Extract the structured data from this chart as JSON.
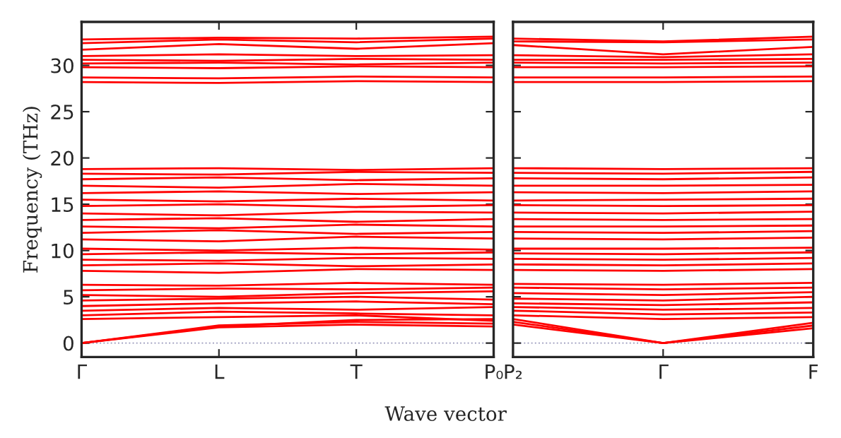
{
  "chart_data": [
    {
      "type": "line",
      "ylabel": "Frequency (THz)",
      "xlabel": "Wave vector",
      "categories": [
        "Γ",
        "L",
        "T",
        "P₀"
      ],
      "ylim": [
        -1.5,
        34.7
      ],
      "yticks": [
        0,
        5,
        10,
        15,
        20,
        25,
        30
      ],
      "line_style": "solid",
      "ref_lines": [
        {
          "axis": "y",
          "value": 0,
          "color": "#9999bb",
          "line_style": "dotted"
        }
      ],
      "series": [
        {
          "color": "#ff0000",
          "values": [
            0,
            1.7,
            2.0,
            1.8
          ]
        },
        {
          "color": "#ff0000",
          "values": [
            0,
            1.9,
            2.3,
            2.1
          ]
        },
        {
          "color": "#ff0000",
          "values": [
            0,
            1.8,
            2.5,
            2.6
          ]
        },
        {
          "color": "#ff0000",
          "values": [
            2.6,
            2.8,
            3.0,
            2.4
          ]
        },
        {
          "color": "#ff0000",
          "values": [
            3.0,
            3.4,
            3.2,
            3.0
          ]
        },
        {
          "color": "#ff0000",
          "values": [
            3.5,
            3.8,
            3.6,
            3.9
          ]
        },
        {
          "color": "#ff0000",
          "values": [
            4.0,
            4.3,
            4.5,
            4.2
          ]
        },
        {
          "color": "#ff0000",
          "values": [
            4.6,
            4.8,
            5.0,
            4.7
          ]
        },
        {
          "color": "#ff0000",
          "values": [
            5.2,
            5.0,
            5.4,
            5.6
          ]
        },
        {
          "color": "#ff0000",
          "values": [
            5.7,
            5.9,
            5.8,
            6.0
          ]
        },
        {
          "color": "#ff0000",
          "values": [
            6.3,
            6.2,
            6.5,
            6.3
          ]
        },
        {
          "color": "#ff0000",
          "values": [
            7.8,
            7.6,
            8.0,
            7.9
          ]
        },
        {
          "color": "#ff0000",
          "values": [
            8.4,
            8.6,
            8.3,
            8.5
          ]
        },
        {
          "color": "#ff0000",
          "values": [
            9.0,
            8.9,
            9.2,
            9.1
          ]
        },
        {
          "color": "#ff0000",
          "values": [
            9.6,
            9.8,
            9.6,
            9.8
          ]
        },
        {
          "color": "#ff0000",
          "values": [
            10.2,
            10.0,
            10.3,
            10.1
          ]
        },
        {
          "color": "#ff0000",
          "values": [
            11.2,
            11.0,
            11.5,
            11.3
          ]
        },
        {
          "color": "#ff0000",
          "values": [
            11.9,
            12.2,
            11.8,
            12.0
          ]
        },
        {
          "color": "#ff0000",
          "values": [
            12.6,
            12.4,
            12.8,
            12.6
          ]
        },
        {
          "color": "#ff0000",
          "values": [
            13.3,
            13.5,
            13.1,
            13.4
          ]
        },
        {
          "color": "#ff0000",
          "values": [
            14.0,
            13.8,
            14.2,
            14.1
          ]
        },
        {
          "color": "#ff0000",
          "values": [
            14.8,
            15.0,
            14.7,
            14.9
          ]
        },
        {
          "color": "#ff0000",
          "values": [
            15.5,
            15.3,
            15.6,
            15.4
          ]
        },
        {
          "color": "#ff0000",
          "values": [
            16.2,
            16.4,
            16.1,
            16.3
          ]
        },
        {
          "color": "#ff0000",
          "values": [
            17.0,
            16.8,
            17.2,
            17.0
          ]
        },
        {
          "color": "#ff0000",
          "values": [
            17.7,
            17.9,
            17.6,
            17.8
          ]
        },
        {
          "color": "#ff0000",
          "values": [
            18.3,
            18.2,
            18.5,
            18.4
          ]
        },
        {
          "color": "#ff0000",
          "values": [
            18.8,
            18.9,
            18.7,
            18.9
          ]
        },
        {
          "color": "#ff0000",
          "values": [
            28.2,
            28.1,
            28.3,
            28.2
          ]
        },
        {
          "color": "#ff0000",
          "values": [
            28.7,
            28.6,
            28.8,
            28.7
          ]
        },
        {
          "color": "#ff0000",
          "values": [
            29.8,
            29.7,
            29.9,
            29.8
          ]
        },
        {
          "color": "#ff0000",
          "values": [
            30.2,
            30.3,
            30.1,
            30.3
          ]
        },
        {
          "color": "#ff0000",
          "values": [
            30.6,
            30.5,
            30.7,
            30.6
          ]
        },
        {
          "color": "#ff0000",
          "values": [
            31.0,
            31.2,
            31.0,
            31.1
          ]
        },
        {
          "color": "#ff0000",
          "values": [
            31.7,
            32.3,
            31.8,
            32.4
          ]
        },
        {
          "color": "#ff0000",
          "values": [
            32.4,
            32.8,
            32.5,
            32.9
          ]
        },
        {
          "color": "#ff0000",
          "values": [
            32.8,
            33.0,
            32.9,
            33.1
          ]
        }
      ]
    },
    {
      "type": "line",
      "categories": [
        "P₂",
        "Γ",
        "F"
      ],
      "ylim": [
        -1.5,
        34.7
      ],
      "yticks": [
        0,
        5,
        10,
        15,
        20,
        25,
        30
      ],
      "tick_labels": "x",
      "line_style": "solid",
      "ref_lines": [
        {
          "axis": "y",
          "value": 0,
          "color": "#9999bb",
          "line_style": "dotted"
        }
      ],
      "series": [
        {
          "color": "#ff0000",
          "values": [
            2.0,
            0,
            1.6
          ]
        },
        {
          "color": "#ff0000",
          "values": [
            2.3,
            0,
            1.9
          ]
        },
        {
          "color": "#ff0000",
          "values": [
            2.6,
            0,
            2.2
          ]
        },
        {
          "color": "#ff0000",
          "values": [
            3.0,
            2.6,
            2.8
          ]
        },
        {
          "color": "#ff0000",
          "values": [
            3.5,
            3.1,
            3.3
          ]
        },
        {
          "color": "#ff0000",
          "values": [
            3.9,
            3.6,
            3.8
          ]
        },
        {
          "color": "#ff0000",
          "values": [
            4.3,
            4.1,
            4.4
          ]
        },
        {
          "color": "#ff0000",
          "values": [
            4.8,
            4.6,
            5.0
          ]
        },
        {
          "color": "#ff0000",
          "values": [
            5.4,
            5.2,
            5.5
          ]
        },
        {
          "color": "#ff0000",
          "values": [
            6.0,
            5.8,
            6.0
          ]
        },
        {
          "color": "#ff0000",
          "values": [
            6.4,
            6.3,
            6.5
          ]
        },
        {
          "color": "#ff0000",
          "values": [
            7.9,
            7.8,
            8.0
          ]
        },
        {
          "color": "#ff0000",
          "values": [
            8.5,
            8.4,
            8.6
          ]
        },
        {
          "color": "#ff0000",
          "values": [
            9.1,
            9.0,
            9.2
          ]
        },
        {
          "color": "#ff0000",
          "values": [
            9.7,
            9.6,
            9.8
          ]
        },
        {
          "color": "#ff0000",
          "values": [
            10.2,
            10.2,
            10.3
          ]
        },
        {
          "color": "#ff0000",
          "values": [
            11.3,
            11.2,
            11.4
          ]
        },
        {
          "color": "#ff0000",
          "values": [
            12.0,
            11.9,
            12.1
          ]
        },
        {
          "color": "#ff0000",
          "values": [
            12.6,
            12.6,
            12.7
          ]
        },
        {
          "color": "#ff0000",
          "values": [
            13.4,
            13.3,
            13.4
          ]
        },
        {
          "color": "#ff0000",
          "values": [
            14.1,
            14.0,
            14.2
          ]
        },
        {
          "color": "#ff0000",
          "values": [
            14.9,
            14.8,
            14.9
          ]
        },
        {
          "color": "#ff0000",
          "values": [
            15.4,
            15.5,
            15.6
          ]
        },
        {
          "color": "#ff0000",
          "values": [
            16.3,
            16.2,
            16.4
          ]
        },
        {
          "color": "#ff0000",
          "values": [
            17.0,
            17.0,
            17.1
          ]
        },
        {
          "color": "#ff0000",
          "values": [
            17.8,
            17.7,
            17.9
          ]
        },
        {
          "color": "#ff0000",
          "values": [
            18.4,
            18.3,
            18.5
          ]
        },
        {
          "color": "#ff0000",
          "values": [
            18.9,
            18.8,
            18.9
          ]
        },
        {
          "color": "#ff0000",
          "values": [
            28.2,
            28.2,
            28.3
          ]
        },
        {
          "color": "#ff0000",
          "values": [
            28.7,
            28.7,
            28.8
          ]
        },
        {
          "color": "#ff0000",
          "values": [
            29.8,
            29.8,
            29.9
          ]
        },
        {
          "color": "#ff0000",
          "values": [
            30.3,
            30.2,
            30.3
          ]
        },
        {
          "color": "#ff0000",
          "values": [
            30.6,
            30.6,
            30.7
          ]
        },
        {
          "color": "#ff0000",
          "values": [
            31.1,
            30.9,
            31.2
          ]
        },
        {
          "color": "#ff0000",
          "values": [
            32.2,
            31.2,
            32.0
          ]
        },
        {
          "color": "#ff0000",
          "values": [
            32.6,
            32.5,
            32.8
          ]
        },
        {
          "color": "#ff0000",
          "values": [
            32.9,
            32.6,
            33.1
          ]
        }
      ]
    }
  ]
}
